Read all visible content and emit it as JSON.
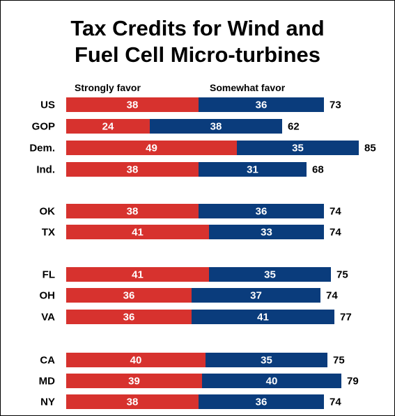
{
  "chart_data": {
    "type": "bar",
    "orientation": "horizontal",
    "stacked": true,
    "title_lines": [
      "Tax Credits for Wind and",
      "Fuel Cell Micro-turbines"
    ],
    "categories": [
      "US",
      "GOP",
      "Dem.",
      "Ind.",
      "OK",
      "TX",
      "FL",
      "OH",
      "VA",
      "CA",
      "MD",
      "NY"
    ],
    "groups": [
      [
        0,
        1,
        2,
        3
      ],
      [
        4,
        5
      ],
      [
        6,
        7,
        8
      ],
      [
        9,
        10,
        11
      ]
    ],
    "series": [
      {
        "name": "Strongly favor",
        "color": "#D7322E",
        "values": [
          38,
          24,
          49,
          38,
          38,
          41,
          41,
          36,
          36,
          40,
          39,
          38
        ]
      },
      {
        "name": "Somewhat favor",
        "color": "#0A3C7C",
        "values": [
          36,
          38,
          35,
          31,
          36,
          33,
          35,
          37,
          41,
          35,
          40,
          36
        ]
      }
    ],
    "totals": [
      73,
      62,
      85,
      68,
      74,
      74,
      75,
      74,
      77,
      75,
      79,
      74
    ],
    "xlim": [
      0,
      100
    ],
    "grid": false,
    "legend": "top"
  }
}
